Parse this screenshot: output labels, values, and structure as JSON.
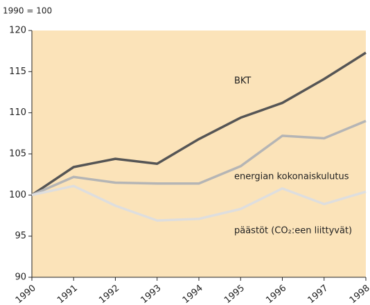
{
  "chart_data": {
    "type": "line",
    "subtitle": "1990 = 100",
    "categories": [
      "1990",
      "1991",
      "1992",
      "1993",
      "1994",
      "1995",
      "1996",
      "1997",
      "1998"
    ],
    "series": [
      {
        "name": "BKT",
        "color": "#555555",
        "values": [
          100,
          103.4,
          104.4,
          103.8,
          106.8,
          109.4,
          111.2,
          114.1,
          117.3
        ]
      },
      {
        "name": "energian kokonaiskulutus",
        "color": "#b5b5b5",
        "values": [
          100,
          102.2,
          101.5,
          101.4,
          101.4,
          103.5,
          107.2,
          106.9,
          109.0
        ]
      },
      {
        "name": "päästöt (CO₂:een liittyvät)",
        "color": "#dedede",
        "values": [
          100,
          101.1,
          98.7,
          96.9,
          97.1,
          98.3,
          100.8,
          98.9,
          100.4
        ]
      }
    ],
    "ylim": [
      90,
      120
    ],
    "yticks": [
      90,
      95,
      100,
      105,
      110,
      115,
      120
    ],
    "grid": false,
    "background": "#fbe3b9"
  }
}
